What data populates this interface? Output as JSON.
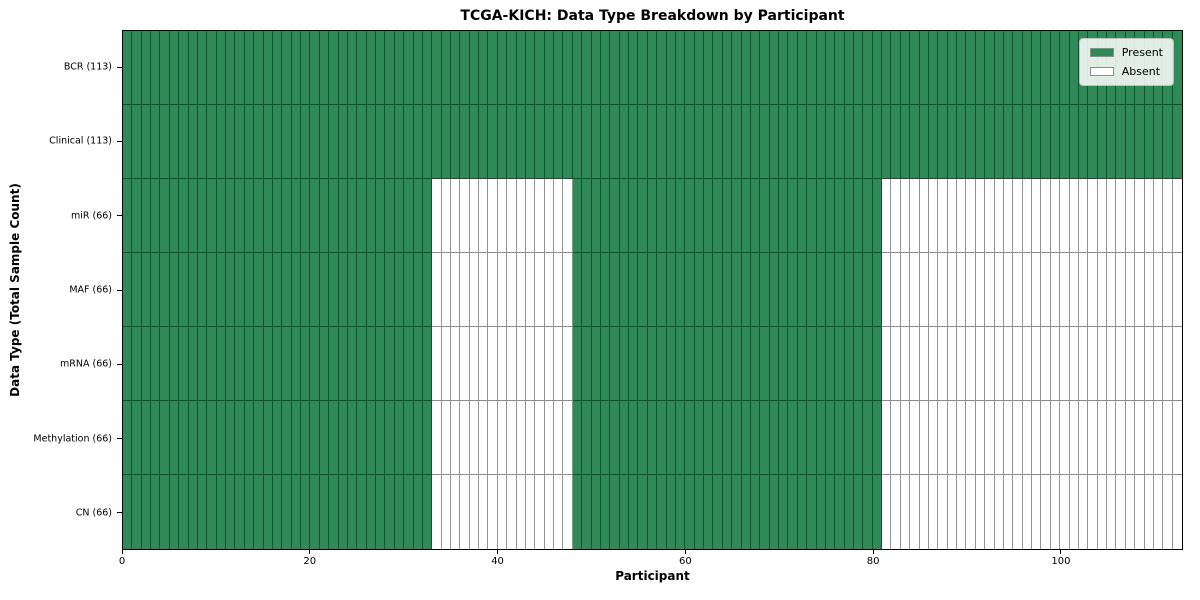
{
  "chart_data": {
    "type": "heatmap",
    "title": "TCGA-KICH: Data Type Breakdown by Participant",
    "xlabel": "Participant",
    "ylabel": "Data Type (Total Sample Count)",
    "xlim": [
      0,
      113
    ],
    "x_ticks": [
      0,
      20,
      40,
      60,
      80,
      100
    ],
    "n_participants": 113,
    "grid": true,
    "colors": {
      "present": "#2e8b57",
      "absent": "#ffffff"
    },
    "legend": {
      "position": "upper right",
      "items": [
        {
          "label": "Present",
          "color": "#2e8b57"
        },
        {
          "label": "Absent",
          "color": "#ffffff"
        }
      ]
    },
    "rows": [
      {
        "label": "BCR (113)",
        "data_type": "BCR",
        "total_samples": 113,
        "present_segments": [
          [
            0,
            113
          ]
        ]
      },
      {
        "label": "Clinical (113)",
        "data_type": "Clinical",
        "total_samples": 113,
        "present_segments": [
          [
            0,
            113
          ]
        ]
      },
      {
        "label": "miR (66)",
        "data_type": "miR",
        "total_samples": 66,
        "present_segments": [
          [
            0,
            33
          ],
          [
            48,
            81
          ]
        ]
      },
      {
        "label": "MAF (66)",
        "data_type": "MAF",
        "total_samples": 66,
        "present_segments": [
          [
            0,
            33
          ],
          [
            48,
            81
          ]
        ]
      },
      {
        "label": "mRNA (66)",
        "data_type": "mRNA",
        "total_samples": 66,
        "present_segments": [
          [
            0,
            33
          ],
          [
            48,
            81
          ]
        ]
      },
      {
        "label": "Methylation (66)",
        "data_type": "Methylation",
        "total_samples": 66,
        "present_segments": [
          [
            0,
            33
          ],
          [
            48,
            81
          ]
        ]
      },
      {
        "label": "CN (66)",
        "data_type": "CN",
        "total_samples": 66,
        "present_segments": [
          [
            0,
            33
          ],
          [
            48,
            81
          ]
        ]
      }
    ]
  }
}
